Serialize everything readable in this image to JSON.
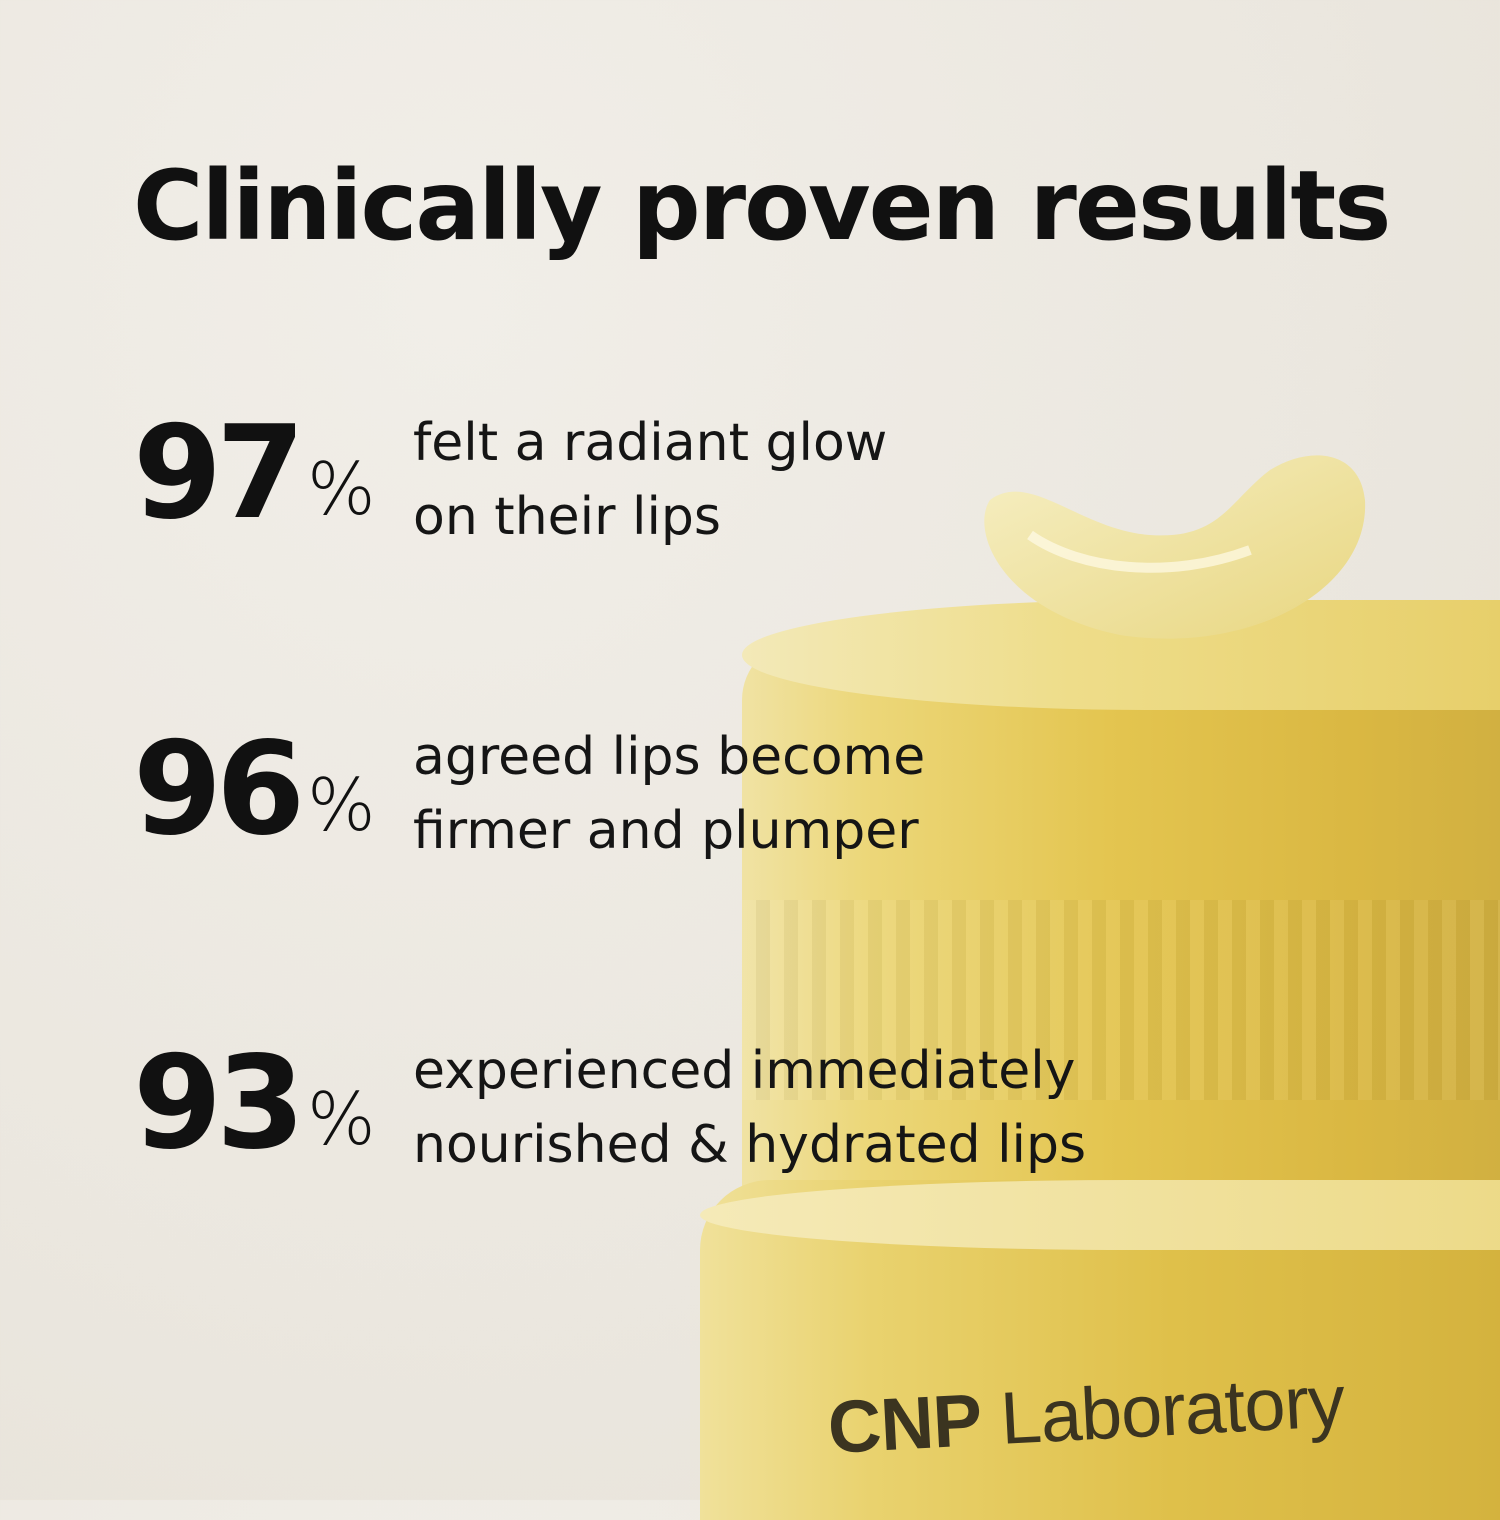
{
  "title": "Clinically proven results",
  "stats": [
    {
      "value": "97",
      "unit": "%",
      "line1": "felt a radiant glow",
      "line2": "on their lips"
    },
    {
      "value": "96",
      "unit": "%",
      "line1": "agreed lips become",
      "line2": "firmer and plumper"
    },
    {
      "value": "93",
      "unit": "%",
      "line1": "experienced immediately",
      "line2": "nourished & hydrated lips"
    }
  ],
  "product": {
    "logo": "CNP Laboratory",
    "logo_bold": "CNP",
    "logo_rest": "Laboratory",
    "color": "#e3c348"
  },
  "background_color": "#ebe7df"
}
